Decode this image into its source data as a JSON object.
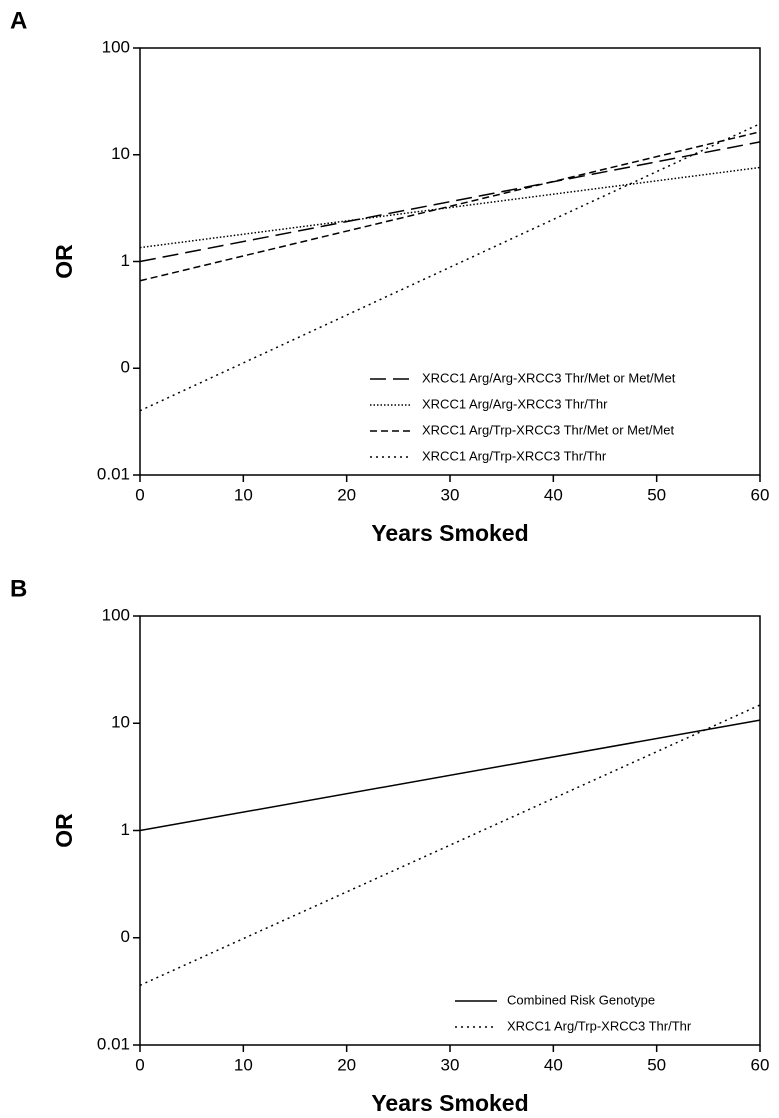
{
  "chart_data": [
    {
      "type": "line",
      "panel": "A",
      "xlabel": "Years Smoked",
      "ylabel": "OR",
      "log_y": true,
      "xlim": [
        0,
        60
      ],
      "xticks": [
        0,
        10,
        20,
        30,
        40,
        50,
        60
      ],
      "ylim": [
        0.01,
        100
      ],
      "yticks": [
        0.01,
        {
          "value": 0.1,
          "label": "0"
        },
        1,
        10,
        100
      ],
      "legend": "lower right",
      "x": [
        0,
        60
      ],
      "series": [
        {
          "name": "XRCC1 Arg/Arg-XRCC3 Thr/Met or Met/Met",
          "color": "#000000",
          "dash": "long",
          "values": [
            1.0,
            13.2
          ]
        },
        {
          "name": "XRCC1 Arg/Arg-XRCC3 Thr/Thr",
          "color": "#000000",
          "dash": "fine-dotted",
          "values": [
            1.35,
            7.6
          ]
        },
        {
          "name": "XRCC1 Arg/Trp-XRCC3 Thr/Met or Met/Met",
          "color": "#000000",
          "dash": "short",
          "values": [
            0.66,
            16.4
          ]
        },
        {
          "name": "XRCC1 Arg/Trp-XRCC3 Thr/Thr",
          "color": "#000000",
          "dash": "dotted",
          "values": [
            0.04,
            19.5
          ]
        }
      ]
    },
    {
      "type": "line",
      "panel": "B",
      "xlabel": "Years Smoked",
      "ylabel": "OR",
      "log_y": true,
      "xlim": [
        0,
        60
      ],
      "xticks": [
        0,
        10,
        20,
        30,
        40,
        50,
        60
      ],
      "ylim": [
        0.01,
        100
      ],
      "yticks": [
        0.01,
        {
          "value": 0.1,
          "label": "0"
        },
        1,
        10,
        100
      ],
      "legend": "lower right",
      "x": [
        0,
        60
      ],
      "series": [
        {
          "name": "Combined Risk Genotype",
          "color": "#000000",
          "dash": "solid",
          "values": [
            1.0,
            10.7
          ]
        },
        {
          "name": "XRCC1 Arg/Trp-XRCC3 Thr/Thr",
          "color": "#000000",
          "dash": "dotted",
          "values": [
            0.036,
            14.8
          ]
        }
      ]
    }
  ]
}
